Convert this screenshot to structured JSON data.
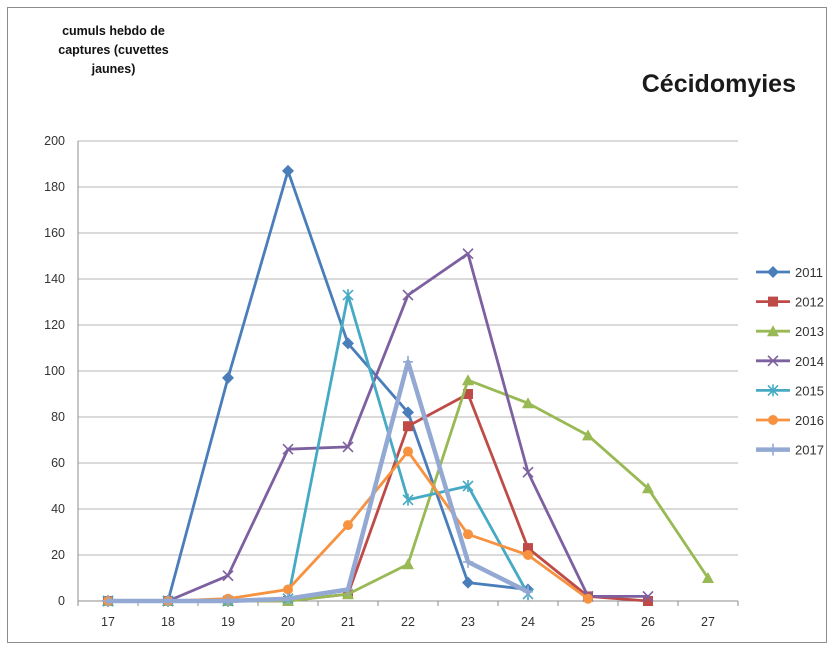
{
  "chart_data": {
    "type": "line",
    "title": "Cécidomyies",
    "ylabel": "cumuls hebdo de captures (cuvettes jaunes)",
    "xlabel": "",
    "x": [
      17,
      18,
      19,
      20,
      21,
      22,
      23,
      24,
      25,
      26,
      27
    ],
    "ylim": [
      0,
      200
    ],
    "yticks": [
      0,
      20,
      40,
      60,
      80,
      100,
      120,
      140,
      160,
      180,
      200
    ],
    "grid": true,
    "legend": "right",
    "series": [
      {
        "name": "2011",
        "color": "#4a7ebb",
        "marker": "diamond",
        "points": [
          [
            17,
            0
          ],
          [
            18,
            0
          ],
          [
            19,
            97
          ],
          [
            20,
            187
          ],
          [
            21,
            112
          ],
          [
            22,
            82
          ],
          [
            23,
            8
          ],
          [
            24,
            5
          ]
        ]
      },
      {
        "name": "2012",
        "color": "#be4b48",
        "marker": "square",
        "points": [
          [
            17,
            0
          ],
          [
            18,
            0
          ],
          [
            19,
            0
          ],
          [
            20,
            0
          ],
          [
            21,
            3
          ],
          [
            22,
            76
          ],
          [
            23,
            90
          ],
          [
            24,
            23
          ],
          [
            25,
            2
          ],
          [
            26,
            0
          ]
        ]
      },
      {
        "name": "2013",
        "color": "#98b954",
        "marker": "triangle",
        "points": [
          [
            17,
            0
          ],
          [
            18,
            0
          ],
          [
            19,
            0
          ],
          [
            20,
            0
          ],
          [
            21,
            3
          ],
          [
            22,
            16
          ],
          [
            23,
            96
          ],
          [
            24,
            86
          ],
          [
            25,
            72
          ],
          [
            26,
            49
          ],
          [
            27,
            10
          ]
        ]
      },
      {
        "name": "2014",
        "color": "#7d60a0",
        "marker": "x",
        "points": [
          [
            17,
            0
          ],
          [
            18,
            0
          ],
          [
            19,
            11
          ],
          [
            20,
            66
          ],
          [
            21,
            67
          ],
          [
            22,
            133
          ],
          [
            23,
            151
          ],
          [
            24,
            56
          ],
          [
            25,
            2
          ],
          [
            26,
            2
          ]
        ]
      },
      {
        "name": "2015",
        "color": "#46aac5",
        "marker": "asterisk",
        "points": [
          [
            17,
            0
          ],
          [
            18,
            0
          ],
          [
            19,
            0
          ],
          [
            20,
            1
          ],
          [
            21,
            133
          ],
          [
            22,
            44
          ],
          [
            23,
            50
          ],
          [
            24,
            3
          ]
        ]
      },
      {
        "name": "2016",
        "color": "#f69240",
        "marker": "circle",
        "points": [
          [
            17,
            0
          ],
          [
            18,
            0
          ],
          [
            19,
            1
          ],
          [
            20,
            5
          ],
          [
            21,
            33
          ],
          [
            22,
            65
          ],
          [
            23,
            29
          ],
          [
            24,
            20
          ],
          [
            25,
            1
          ]
        ]
      },
      {
        "name": "2017",
        "color": "#93a9d3",
        "marker": "plus",
        "thick": true,
        "points": [
          [
            17,
            0
          ],
          [
            18,
            0
          ],
          [
            19,
            0
          ],
          [
            20,
            1
          ],
          [
            21,
            5
          ],
          [
            22,
            104
          ],
          [
            23,
            17
          ],
          [
            24,
            4
          ]
        ]
      }
    ]
  }
}
